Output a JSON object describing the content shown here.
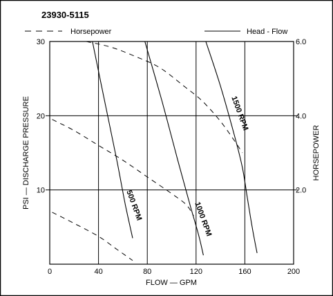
{
  "chart_data": {
    "type": "line",
    "title": "23930-5115",
    "xlabel": "FLOW — GPM",
    "ylabel_left": "PSI — DISCHARGE PRESSURE",
    "ylabel_right": "HORSEPOWER",
    "xlim": [
      0,
      200
    ],
    "ylim_left": [
      0,
      30
    ],
    "ylim_right": [
      0,
      6.0
    ],
    "x_ticks": [
      "0",
      "40",
      "80",
      "120",
      "160",
      "200"
    ],
    "y_left_ticks": [
      "10",
      "20",
      "30"
    ],
    "y_right_ticks": [
      "2.0",
      "4.0",
      "6.0"
    ],
    "grid": true,
    "legend": {
      "placement": "top",
      "entries": [
        {
          "label": "Horsepower",
          "style": "dashed"
        },
        {
          "label": "Head - Flow",
          "style": "solid"
        }
      ]
    },
    "series": [
      {
        "name": "500 RPM",
        "kind": "head-flow",
        "axis": "left",
        "x": [
          35,
          45,
          55,
          62,
          68
        ],
        "y": [
          30,
          22,
          14,
          8,
          3.5
        ]
      },
      {
        "name": "1000 RPM",
        "kind": "head-flow",
        "axis": "left",
        "x": [
          78,
          92,
          105,
          115,
          122,
          126
        ],
        "y": [
          30,
          22,
          14,
          8,
          4,
          1.2
        ]
      },
      {
        "name": "1500 RPM",
        "kind": "head-flow",
        "axis": "left",
        "x": [
          128,
          140,
          152,
          158,
          162,
          166,
          170
        ],
        "y": [
          30,
          24,
          17,
          13,
          9,
          5,
          1.5
        ]
      },
      {
        "kind": "horsepower",
        "axis": "right",
        "x": [
          2,
          20,
          40,
          55,
          68
        ],
        "y": [
          1.4,
          1.1,
          0.75,
          0.4,
          0.1
        ]
      },
      {
        "kind": "horsepower",
        "axis": "right",
        "x": [
          2,
          20,
          40,
          60,
          80,
          100,
          112,
          118
        ],
        "y": [
          3.9,
          3.6,
          3.2,
          2.8,
          2.35,
          1.9,
          1.6,
          1.3
        ]
      },
      {
        "kind": "horsepower",
        "axis": "right",
        "x": [
          30,
          50,
          70,
          90,
          110,
          125,
          140,
          152,
          158
        ],
        "y": [
          6.0,
          5.85,
          5.6,
          5.3,
          4.8,
          4.4,
          3.85,
          3.3,
          3.0
        ]
      }
    ],
    "annotations": [
      "500 RPM",
      "1000 RPM",
      "1500 RPM"
    ]
  }
}
